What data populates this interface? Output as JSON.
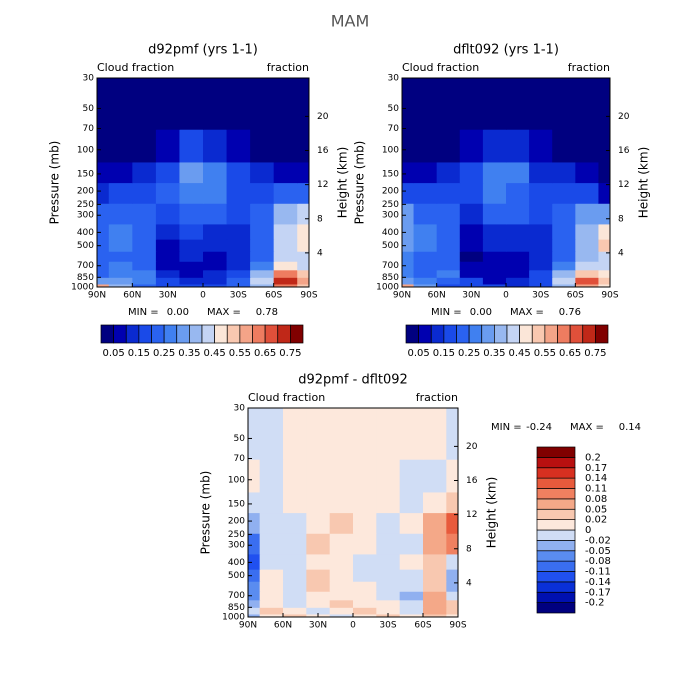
{
  "title": "MAM",
  "chart_data": [
    {
      "type": "contour",
      "title": "d92pmf (yrs 1-1)",
      "left_note": "Cloud fraction",
      "right_note": "fraction",
      "ylabel": "Pressure (mb)",
      "y2label": "Height (km)",
      "xlim": [
        90,
        -90
      ],
      "xticks": [
        {
          "value": 90,
          "label": "90N"
        },
        {
          "value": 60,
          "label": "60N"
        },
        {
          "value": 30,
          "label": "30N"
        },
        {
          "value": 0,
          "label": "0"
        },
        {
          "value": -30,
          "label": "30S"
        },
        {
          "value": -60,
          "label": "60S"
        },
        {
          "value": -90,
          "label": "90S"
        }
      ],
      "ylim": [
        1000,
        30
      ],
      "yscale": "log",
      "yticks": [
        1000,
        850,
        700,
        500,
        400,
        300,
        250,
        200,
        150,
        100,
        70,
        50,
        30
      ],
      "y2lim": [
        0,
        24.5
      ],
      "y2ticks": [
        4,
        8,
        12,
        16,
        20
      ],
      "x": [
        90,
        70,
        50,
        30,
        10,
        -10,
        -30,
        -50,
        -70,
        -90
      ],
      "y": [
        1000,
        900,
        800,
        700,
        600,
        500,
        400,
        300,
        200,
        150,
        100,
        50
      ],
      "z": [
        [
          0.55,
          0.35,
          0.2,
          0.15,
          0.15,
          0.15,
          0.2,
          0.35,
          0.6,
          0.5
        ],
        [
          0.3,
          0.3,
          0.25,
          0.15,
          0.1,
          0.12,
          0.2,
          0.4,
          0.7,
          0.55
        ],
        [
          0.2,
          0.25,
          0.25,
          0.1,
          0.08,
          0.1,
          0.15,
          0.35,
          0.6,
          0.5
        ],
        [
          0.2,
          0.25,
          0.2,
          0.06,
          0.08,
          0.08,
          0.12,
          0.25,
          0.45,
          0.4
        ],
        [
          0.2,
          0.22,
          0.2,
          0.06,
          0.1,
          0.08,
          0.1,
          0.2,
          0.4,
          0.4
        ],
        [
          0.22,
          0.25,
          0.2,
          0.08,
          0.12,
          0.1,
          0.12,
          0.2,
          0.4,
          0.45
        ],
        [
          0.22,
          0.25,
          0.2,
          0.1,
          0.15,
          0.12,
          0.12,
          0.2,
          0.4,
          0.45
        ],
        [
          0.2,
          0.22,
          0.2,
          0.15,
          0.22,
          0.2,
          0.15,
          0.2,
          0.35,
          0.4
        ],
        [
          0.12,
          0.15,
          0.15,
          0.2,
          0.28,
          0.25,
          0.18,
          0.15,
          0.2,
          0.2
        ],
        [
          0.05,
          0.08,
          0.1,
          0.18,
          0.3,
          0.28,
          0.15,
          0.1,
          0.08,
          0.05
        ],
        [
          0.02,
          0.02,
          0.03,
          0.08,
          0.15,
          0.12,
          0.06,
          0.03,
          0.02,
          0.02
        ],
        [
          0.01,
          0.01,
          0.01,
          0.01,
          0.02,
          0.02,
          0.01,
          0.01,
          0.01,
          0.01
        ]
      ],
      "min_label": "MIN =",
      "min": {
        "value": 0,
        "label": "0.00"
      },
      "max_label": "MAX =",
      "max": {
        "value": 0.78,
        "label": "0.78"
      },
      "colorbar": {
        "orientation": "horizontal",
        "levels": [
          0.05,
          0.1,
          0.15,
          0.2,
          0.25,
          0.3,
          0.35,
          0.4,
          0.45,
          0.5,
          0.55,
          0.6,
          0.65,
          0.7,
          0.75
        ],
        "colors": [
          "#000080",
          "#0000b0",
          "#0a2ad0",
          "#1a4ae8",
          "#2a62f0",
          "#4080f0",
          "#6a9cf0",
          "#98b8f0",
          "#c4d4f4",
          "#fbe6d8",
          "#f9c8b0",
          "#f4a488",
          "#ee7c60",
          "#e0503a",
          "#c02818",
          "#800000"
        ],
        "ticks": [
          0.05,
          0.15,
          0.25,
          0.35,
          0.45,
          0.55,
          0.65,
          0.75
        ]
      }
    },
    {
      "type": "contour",
      "title": "dflt092 (yrs 1-1)",
      "left_note": "Cloud fraction",
      "right_note": "fraction",
      "ylabel": "Pressure (mb)",
      "y2label": "Height (km)",
      "xlim": [
        90,
        -90
      ],
      "xticks": [
        {
          "value": 90,
          "label": "90N"
        },
        {
          "value": 60,
          "label": "60N"
        },
        {
          "value": 30,
          "label": "30N"
        },
        {
          "value": 0,
          "label": "0"
        },
        {
          "value": -30,
          "label": "30S"
        },
        {
          "value": -60,
          "label": "60S"
        },
        {
          "value": -90,
          "label": "90S"
        }
      ],
      "ylim": [
        1000,
        30
      ],
      "yscale": "log",
      "yticks": [
        1000,
        850,
        700,
        500,
        400,
        300,
        250,
        200,
        150,
        100,
        70,
        50,
        30
      ],
      "y2lim": [
        0,
        24.5
      ],
      "y2ticks": [
        4,
        8,
        12,
        16,
        20
      ],
      "x": [
        90,
        70,
        50,
        30,
        10,
        -10,
        -30,
        -50,
        -70,
        -90
      ],
      "y": [
        1000,
        900,
        800,
        700,
        600,
        500,
        400,
        300,
        200,
        150,
        100,
        50
      ],
      "z": [
        [
          0.58,
          0.34,
          0.18,
          0.15,
          0.16,
          0.14,
          0.18,
          0.35,
          0.57,
          0.49
        ],
        [
          0.32,
          0.28,
          0.24,
          0.16,
          0.09,
          0.1,
          0.19,
          0.42,
          0.65,
          0.53
        ],
        [
          0.25,
          0.24,
          0.26,
          0.09,
          0.06,
          0.09,
          0.15,
          0.37,
          0.54,
          0.47
        ],
        [
          0.26,
          0.24,
          0.22,
          0.05,
          0.07,
          0.08,
          0.13,
          0.28,
          0.4,
          0.42
        ],
        [
          0.28,
          0.22,
          0.22,
          0.04,
          0.09,
          0.08,
          0.11,
          0.22,
          0.37,
          0.43
        ],
        [
          0.32,
          0.25,
          0.21,
          0.06,
          0.12,
          0.11,
          0.13,
          0.21,
          0.38,
          0.5
        ],
        [
          0.34,
          0.26,
          0.22,
          0.09,
          0.14,
          0.13,
          0.14,
          0.2,
          0.37,
          0.47
        ],
        [
          0.3,
          0.23,
          0.22,
          0.13,
          0.21,
          0.2,
          0.16,
          0.21,
          0.3,
          0.32
        ],
        [
          0.15,
          0.16,
          0.16,
          0.19,
          0.26,
          0.24,
          0.19,
          0.15,
          0.15,
          0.08
        ],
        [
          0.07,
          0.09,
          0.1,
          0.17,
          0.29,
          0.28,
          0.14,
          0.11,
          0.07,
          0.02
        ],
        [
          0.02,
          0.03,
          0.03,
          0.07,
          0.14,
          0.11,
          0.06,
          0.04,
          0.03,
          0.02
        ],
        [
          0.02,
          0.02,
          0.01,
          0.01,
          0.02,
          0.02,
          0.01,
          0.01,
          0.01,
          0.02
        ]
      ],
      "min_label": "MIN =",
      "min": {
        "value": 0,
        "label": "0.00"
      },
      "max_label": "MAX =",
      "max": {
        "value": 0.76,
        "label": "0.76"
      },
      "colorbar": {
        "orientation": "horizontal",
        "levels": [
          0.05,
          0.1,
          0.15,
          0.2,
          0.25,
          0.3,
          0.35,
          0.4,
          0.45,
          0.5,
          0.55,
          0.6,
          0.65,
          0.7,
          0.75
        ],
        "colors": [
          "#000080",
          "#0000b0",
          "#0a2ad0",
          "#1a4ae8",
          "#2a62f0",
          "#4080f0",
          "#6a9cf0",
          "#98b8f0",
          "#c4d4f4",
          "#fbe6d8",
          "#f9c8b0",
          "#f4a488",
          "#ee7c60",
          "#e0503a",
          "#c02818",
          "#800000"
        ],
        "ticks": [
          0.05,
          0.15,
          0.25,
          0.35,
          0.45,
          0.55,
          0.65,
          0.75
        ]
      }
    },
    {
      "type": "contour",
      "title": "d92pmf - dflt092",
      "left_note": "Cloud fraction",
      "right_note": "fraction",
      "ylabel": "Pressure (mb)",
      "y2label": "Height (km)",
      "xlim": [
        90,
        -90
      ],
      "xticks": [
        {
          "value": 90,
          "label": "90N"
        },
        {
          "value": 60,
          "label": "60N"
        },
        {
          "value": 30,
          "label": "30N"
        },
        {
          "value": 0,
          "label": "0"
        },
        {
          "value": -30,
          "label": "30S"
        },
        {
          "value": -60,
          "label": "60S"
        },
        {
          "value": -90,
          "label": "90S"
        }
      ],
      "ylim": [
        1000,
        30
      ],
      "yscale": "log",
      "yticks": [
        1000,
        850,
        700,
        500,
        400,
        300,
        250,
        200,
        150,
        100,
        70,
        50,
        30
      ],
      "y2lim": [
        0,
        24.5
      ],
      "y2ticks": [
        4,
        8,
        12,
        16,
        20
      ],
      "x": [
        90,
        70,
        50,
        30,
        10,
        -10,
        -30,
        -50,
        -70,
        -90
      ],
      "y": [
        1000,
        900,
        800,
        700,
        600,
        500,
        400,
        300,
        200,
        150,
        100,
        50
      ],
      "z": [
        [
          -0.03,
          0.01,
          0.02,
          0,
          -0.01,
          0.01,
          0.02,
          0,
          0.03,
          0.01
        ],
        [
          -0.02,
          0.02,
          0.01,
          -0.01,
          0.01,
          0.02,
          0.01,
          -0.02,
          0.05,
          0.02
        ],
        [
          -0.05,
          0.01,
          -0.01,
          0.01,
          0.02,
          0.01,
          0,
          -0.02,
          0.06,
          0.03
        ],
        [
          -0.06,
          0.01,
          -0.02,
          0.01,
          0.01,
          0,
          -0.01,
          -0.03,
          0.05,
          -0.02
        ],
        [
          -0.08,
          0,
          -0.02,
          0.02,
          0.01,
          0,
          -0.01,
          -0.02,
          0.03,
          -0.03
        ],
        [
          -0.1,
          0,
          -0.01,
          0.02,
          0,
          -0.01,
          -0.01,
          -0.01,
          0.02,
          -0.05
        ],
        [
          -0.12,
          -0.01,
          -0.02,
          0.01,
          0.01,
          -0.01,
          -0.02,
          0,
          0.03,
          -0.02
        ],
        [
          -0.1,
          -0.01,
          -0.02,
          0.02,
          0.01,
          0,
          -0.01,
          -0.01,
          0.05,
          0.08
        ],
        [
          -0.03,
          -0.01,
          -0.01,
          0.01,
          0.02,
          0.01,
          -0.01,
          0,
          0.05,
          0.12
        ],
        [
          -0.02,
          -0.01,
          0,
          0.01,
          0.01,
          0,
          0.01,
          -0.01,
          0.01,
          0.03
        ],
        [
          0,
          -0.01,
          0,
          0.01,
          0.01,
          0.01,
          0,
          -0.01,
          -0.01,
          0
        ],
        [
          -0.01,
          -0.01,
          0,
          0,
          0,
          0,
          0,
          0,
          0,
          -0.01
        ]
      ],
      "min_label": "MIN =",
      "min": {
        "value": -0.24,
        "label": "-0.24"
      },
      "max_label": "MAX =",
      "max": {
        "value": 0.14,
        "label": "0.14"
      },
      "colorbar": {
        "orientation": "vertical",
        "levels": [
          -0.2,
          -0.17,
          -0.14,
          -0.11,
          -0.08,
          -0.05,
          -0.02,
          0,
          0.02,
          0.05,
          0.08,
          0.11,
          0.14,
          0.17,
          0.2
        ],
        "colors": [
          "#00007f",
          "#0010b0",
          "#0a30d8",
          "#2050f0",
          "#3a6ef0",
          "#5a8cf0",
          "#90b0f0",
          "#d0ddf5",
          "#fde8dc",
          "#f8c8b0",
          "#f4a888",
          "#f08060",
          "#e85a3c",
          "#d83020",
          "#b81010",
          "#800000"
        ],
        "ticks": [
          -0.2,
          -0.17,
          -0.14,
          -0.11,
          -0.08,
          -0.05,
          -0.02,
          0,
          0.02,
          0.05,
          0.08,
          0.11,
          0.14,
          0.17,
          0.2
        ]
      }
    }
  ]
}
